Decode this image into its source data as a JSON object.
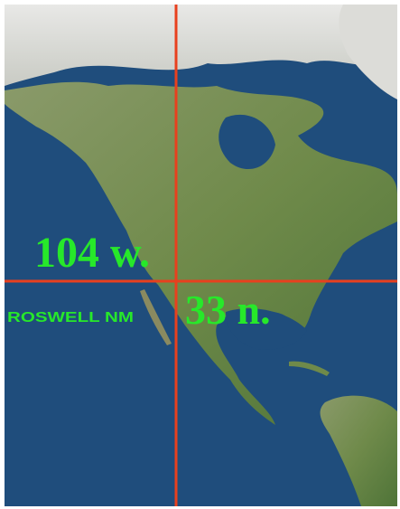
{
  "labels": {
    "longitude": "104 w.",
    "latitude": "33 n.",
    "place": "ROSWELL NM"
  }
}
